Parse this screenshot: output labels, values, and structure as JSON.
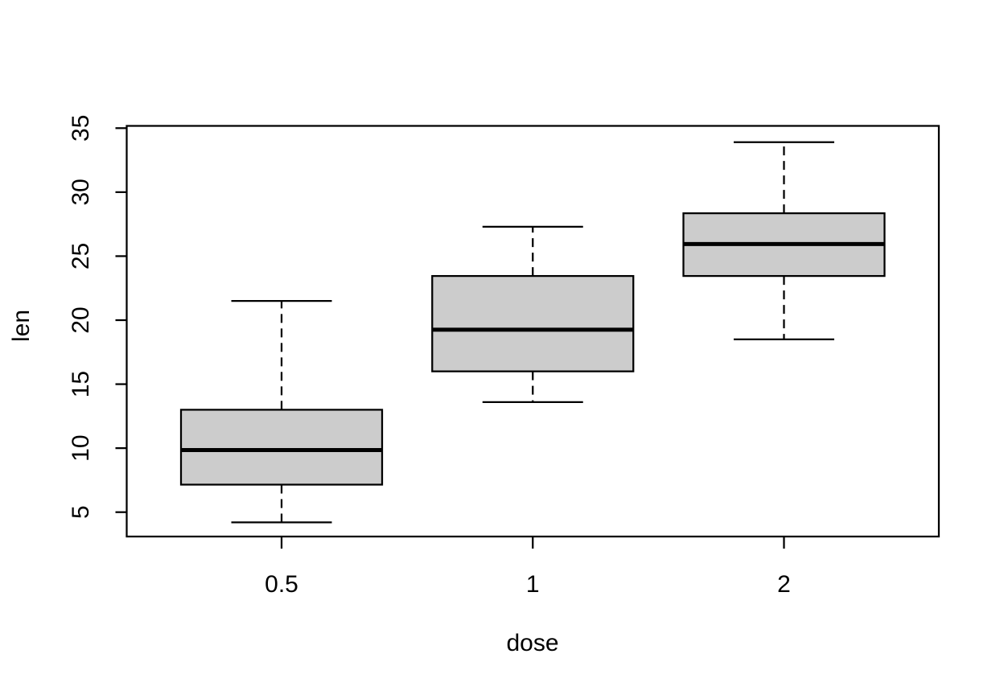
{
  "figure": {
    "background": "#FFFFFF",
    "box_fill": "#CCCCCC",
    "line_color": "#000000"
  },
  "chart_data": {
    "type": "boxplot",
    "title": "",
    "xlabel": "dose",
    "ylabel": "len",
    "categories": [
      "0.5",
      "1",
      "2"
    ],
    "y_ticks": [
      "5",
      "10",
      "15",
      "20",
      "25",
      "30",
      "35"
    ],
    "ylim": [
      3.0,
      35.2
    ],
    "grid": "off",
    "legend": "none",
    "series": [
      {
        "category": "0.5",
        "lower_whisker": 4.2,
        "q1": 7.15,
        "median": 9.85,
        "q3": 13.0,
        "upper_whisker": 21.5,
        "outliers": []
      },
      {
        "category": "1",
        "lower_whisker": 13.6,
        "q1": 16.0,
        "median": 19.25,
        "q3": 23.45,
        "upper_whisker": 27.3,
        "outliers": []
      },
      {
        "category": "2",
        "lower_whisker": 18.5,
        "q1": 23.45,
        "median": 25.95,
        "q3": 28.35,
        "upper_whisker": 33.9,
        "outliers": []
      }
    ]
  }
}
